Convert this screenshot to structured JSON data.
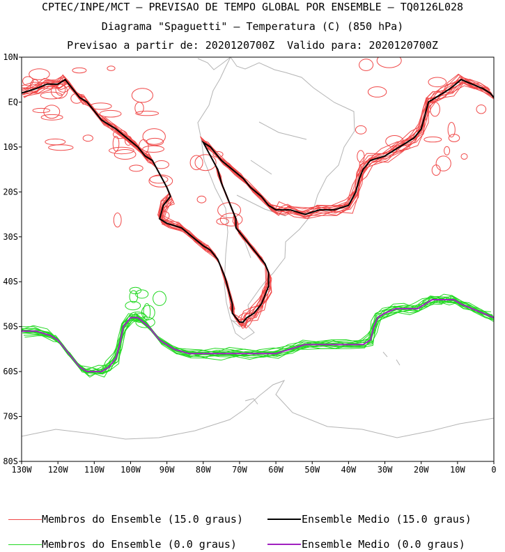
{
  "title": {
    "line1": "CPTEC/INPE/MCT — PREVISAO DE TEMPO GLOBAL POR ENSEMBLE — TQ0126L028",
    "line2": "Diagrama \"Spaguetti\" — Temperatura (C) (850 hPa)",
    "line3": "Previsao a partir de: 2020120700Z  Valido para: 2020120700Z"
  },
  "map": {
    "lon_range": [
      -130,
      0
    ],
    "lat_range": [
      -80,
      10
    ],
    "lat_ticks": [
      "10N",
      "EQ",
      "10S",
      "20S",
      "30S",
      "40S",
      "50S",
      "60S",
      "70S",
      "80S"
    ],
    "lon_ticks": [
      "130W",
      "120W",
      "110W",
      "100W",
      "90W",
      "80W",
      "70W",
      "60W",
      "50W",
      "40W",
      "30W",
      "20W",
      "10W",
      "0"
    ],
    "grid": false
  },
  "legend": {
    "items": [
      {
        "label": "Membros do Ensemble (15.0 graus)",
        "color": "#f04848"
      },
      {
        "label": "Ensemble Medio (15.0 graus)",
        "color": "#000000"
      },
      {
        "label": "Membros do Ensemble (0.0 graus)",
        "color": "#22d822"
      },
      {
        "label": "Ensemble Medio (0.0 graus)",
        "color": "#a020c0"
      }
    ]
  },
  "colors": {
    "coastline": "#b4b4b4",
    "frame": "#000000"
  },
  "chart_data": {
    "type": "line",
    "series": [
      {
        "name": "Ensemble Medio (15.0 graus)",
        "x": [
          -130,
          -126,
          -123,
          -120,
          -118,
          -116,
          -114,
          -112,
          -110,
          -108,
          -106,
          -104,
          -101,
          -98,
          -96,
          -94,
          -92,
          -90,
          -89,
          -91,
          -92,
          -90,
          -86,
          -83,
          -80,
          -78,
          -76,
          -75,
          -74,
          -73,
          -72,
          -72,
          -71,
          -70,
          -69,
          -68,
          -66,
          -64,
          -63,
          -62,
          -62,
          -63,
          -65,
          -67,
          -69,
          -70,
          -71,
          -71,
          -72,
          -73,
          -74,
          -75,
          -76,
          -78,
          -80,
          -78,
          -75,
          -72,
          -69,
          -67,
          -64,
          -62,
          -60,
          -58,
          -56,
          -52,
          -48,
          -44,
          -40,
          -38,
          -37,
          -36,
          -34,
          -30,
          -26,
          -22,
          -20,
          -19,
          -18,
          -16,
          -14,
          -12,
          -9,
          -6,
          -3,
          -1,
          0
        ],
        "y": [
          2,
          3,
          4,
          4,
          5,
          3,
          1,
          0,
          -2,
          -4,
          -5,
          -6,
          -8,
          -10,
          -12,
          -13,
          -16,
          -19,
          -21,
          -23,
          -26,
          -27,
          -28,
          -30,
          -32,
          -33,
          -35,
          -37,
          -39,
          -42,
          -45,
          -47,
          -48,
          -49,
          -49,
          -48,
          -47,
          -45,
          -43,
          -41,
          -38,
          -36,
          -34,
          -32,
          -30,
          -29,
          -28,
          -26,
          -24,
          -22,
          -20,
          -18,
          -15,
          -12,
          -9,
          -10,
          -13,
          -15,
          -17,
          -19,
          -21,
          -23,
          -24,
          -24,
          -24,
          -25,
          -24,
          -24,
          -23,
          -20,
          -17,
          -15,
          -13,
          -12,
          -10,
          -8,
          -6,
          -3,
          0,
          1,
          2,
          3,
          5,
          4,
          3,
          2,
          1
        ]
      },
      {
        "name": "Ensemble Medio (0.0 graus)",
        "x": [
          -130,
          -126,
          -122,
          -120,
          -118,
          -116,
          -114,
          -112,
          -110,
          -108,
          -106,
          -104,
          -103,
          -102,
          -100,
          -98,
          -95,
          -92,
          -88,
          -84,
          -80,
          -76,
          -72,
          -68,
          -64,
          -60,
          -56,
          -52,
          -48,
          -44,
          -40,
          -36,
          -34,
          -33,
          -32,
          -30,
          -27,
          -24,
          -21,
          -19,
          -17,
          -15,
          -13,
          -11,
          -9,
          -6,
          -3,
          0
        ],
        "y": [
          -51,
          -51,
          -52,
          -53,
          -55,
          -57,
          -59,
          -60,
          -60,
          -60,
          -59,
          -57,
          -54,
          -50,
          -48,
          -48,
          -50,
          -53,
          -55,
          -56,
          -56,
          -56,
          -56,
          -56,
          -56,
          -56,
          -55,
          -54,
          -54,
          -54,
          -54,
          -54,
          -53,
          -50,
          -48,
          -47,
          -46,
          -46,
          -46,
          -45,
          -44,
          -44,
          -44,
          -44,
          -45,
          -46,
          -47,
          -48
        ]
      }
    ]
  }
}
